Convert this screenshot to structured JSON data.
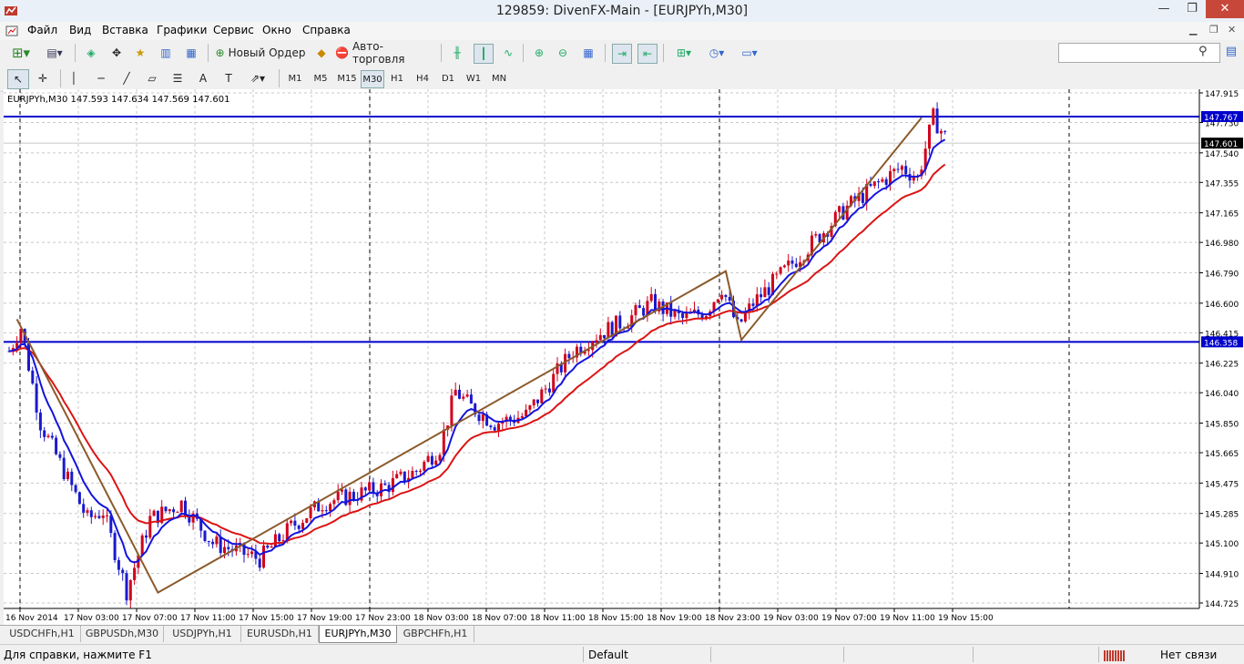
{
  "window": {
    "title": "129859: DivenFX-Main - [EURJPYh,M30]",
    "min": "—",
    "max": "❐",
    "close": "✕"
  },
  "menu": [
    "Файл",
    "Вид",
    "Вставка",
    "Графики",
    "Сервис",
    "Окно",
    "Справка"
  ],
  "toolbar": {
    "new_order": "Новый Ордер",
    "auto_trading": "Авто-торговля"
  },
  "timeframes": [
    "M1",
    "M5",
    "M15",
    "M30",
    "H1",
    "H4",
    "D1",
    "W1",
    "MN"
  ],
  "active_timeframe": "M30",
  "chart": {
    "info": "EURJPYh,M30  147.593 147.634 147.569 147.601",
    "price_labels": [
      "147.915",
      "147.730",
      "147.540",
      "147.355",
      "147.165",
      "146.980",
      "146.790",
      "146.600",
      "146.415",
      "146.225",
      "146.040",
      "145.850",
      "145.665",
      "145.475",
      "145.285",
      "145.100",
      "144.910",
      "144.725"
    ],
    "time_labels": [
      "16 Nov 2014",
      "17 Nov 03:00",
      "17 Nov 07:00",
      "17 Nov 11:00",
      "17 Nov 15:00",
      "17 Nov 19:00",
      "17 Nov 23:00",
      "18 Nov 03:00",
      "18 Nov 07:00",
      "18 Nov 11:00",
      "18 Nov 15:00",
      "18 Nov 19:00",
      "18 Nov 23:00",
      "19 Nov 03:00",
      "19 Nov 07:00",
      "19 Nov 11:00",
      "19 Nov 15:00"
    ],
    "hlines": [
      {
        "price": "147.767",
        "value": 147.767
      },
      {
        "price": "146.358",
        "value": 146.358
      }
    ],
    "current_price": "147.601",
    "colors": {
      "bull": "#d0021b",
      "bear": "#1a1acc",
      "ma_fast": "#1414dc",
      "ma_slow": "#dc1414",
      "zigzag": "#8b5a2b",
      "hline": "#0000cc"
    }
  },
  "tabs": [
    "USDCHFh,H1",
    "GBPUSDh,M30",
    "USDJPYh,H1",
    "EURUSDh,H1",
    "EURJPYh,M30",
    "GBPCHFh,H1"
  ],
  "active_tab": "EURJPYh,M30",
  "status": {
    "help": "Для справки, нажмите F1",
    "profile": "Default",
    "connection": "Нет связи"
  }
}
